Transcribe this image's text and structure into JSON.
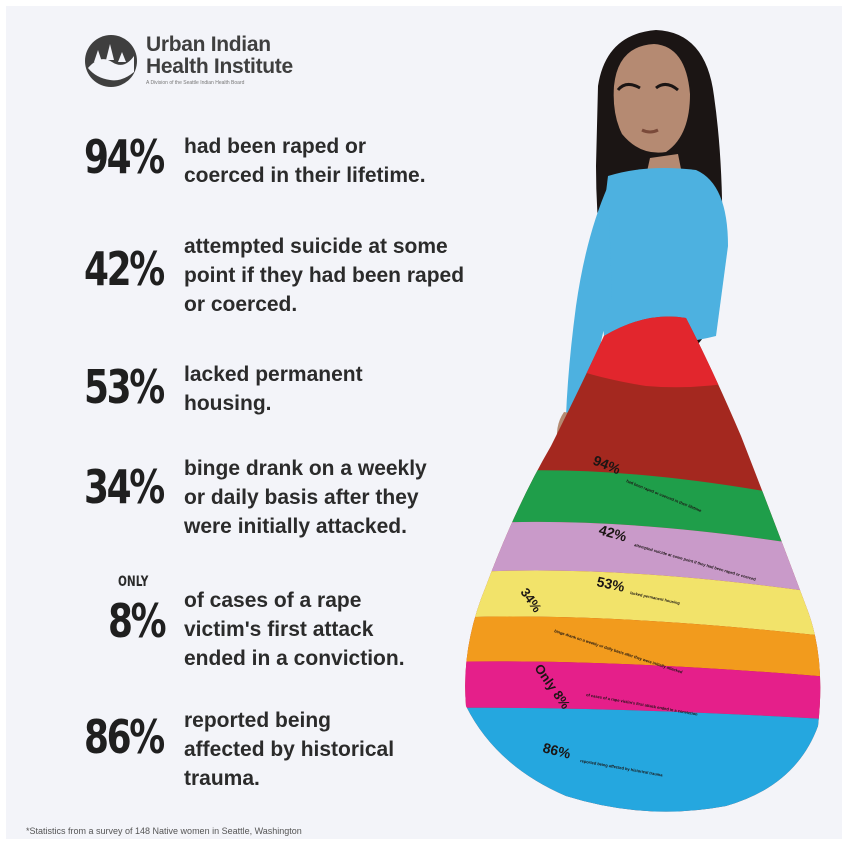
{
  "logo": {
    "name_line1": "Urban Indian",
    "name_line2": "Health Institute",
    "tagline": "A Division of the Seattle Indian Health Board"
  },
  "stats": [
    {
      "percent": "94%",
      "qualifier": "",
      "text": "had been raped or\ncoerced in their lifetime."
    },
    {
      "percent": "42%",
      "qualifier": "",
      "text": "attempted suicide at some\npoint if they had been raped\nor coerced."
    },
    {
      "percent": "53%",
      "qualifier": "",
      "text": "lacked permanent\nhousing."
    },
    {
      "percent": "34%",
      "qualifier": "",
      "text": "binge drank on a weekly\nor daily basis after they\nwere initially attacked."
    },
    {
      "percent": "8%",
      "qualifier": "ONLY",
      "text": "of cases of a rape\nvictim's first attack\nended in a conviction."
    },
    {
      "percent": "86%",
      "qualifier": "",
      "text": "reported being\naffected by historical\ntrauma."
    }
  ],
  "skirt_bands": [
    {
      "label": "94%",
      "text": "had been raped or coerced in their lifetime",
      "color": "#1f9e4a"
    },
    {
      "label": "42%",
      "text": "attempted suicide at some point if they had been raped or coerced",
      "color": "#c99ac9"
    },
    {
      "label": "53%",
      "text": "lacked permanent housing",
      "color": "#f2e36a"
    },
    {
      "label": "34%",
      "text": "binge drank on a weekly or daily basis after they were initially attacked",
      "color": "#f29b1d"
    },
    {
      "label": "Only 8%",
      "text": "of cases of a rape victim's first attack ended in a conviction",
      "color": "#e51f8a"
    },
    {
      "label": "86%",
      "text": "reported being affected by historical trauma",
      "color": "#25a7df"
    }
  ],
  "colors": {
    "blouse": "#4db1e0",
    "skirt_red": "#e2262d",
    "skirt_dark_red": "#a4281f",
    "hair": "#1b1514",
    "skin": "#b58a72"
  },
  "footnote": "*Statistics from a survey of 148 Native women in Seattle, Washington"
}
